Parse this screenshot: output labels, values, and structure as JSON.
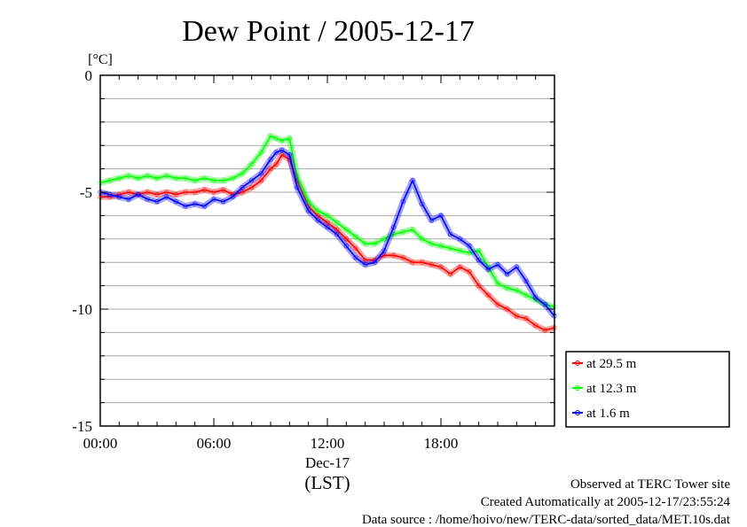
{
  "chart_data": {
    "type": "line",
    "title": "Dew Point / 2005-12-17",
    "ylabel": "[°C]",
    "xlabel": "(LST)",
    "x_date_label": "Dec-17",
    "ylim": [
      -15,
      0
    ],
    "xlim": [
      0,
      24
    ],
    "yticks": [
      {
        "value": 0,
        "label": "0"
      },
      {
        "value": -5,
        "label": "-5"
      },
      {
        "value": -10,
        "label": "-10"
      },
      {
        "value": -15,
        "label": "-15"
      }
    ],
    "xticks": [
      {
        "value": 0,
        "label": "00:00"
      },
      {
        "value": 6,
        "label": "06:00"
      },
      {
        "value": 12,
        "label": "12:00"
      },
      {
        "value": 18,
        "label": "18:00"
      }
    ],
    "grid": true,
    "legend_position": "right-bottom",
    "series": [
      {
        "name": "at 29.5 m",
        "color": "#ff0000",
        "x": [
          0,
          0.5,
          1,
          1.5,
          2,
          2.5,
          3,
          3.5,
          4,
          4.5,
          5,
          5.5,
          6,
          6.5,
          7,
          7.5,
          8,
          8.5,
          9,
          9.3,
          9.6,
          10,
          10.4,
          11,
          11.5,
          12,
          12.5,
          13,
          13.5,
          14,
          14.5,
          15,
          15.5,
          16,
          16.5,
          17,
          17.5,
          18,
          18.5,
          19,
          19.5,
          20,
          20.5,
          21,
          21.5,
          22,
          22.5,
          23,
          23.5,
          24
        ],
        "y": [
          -5.2,
          -5.2,
          -5.1,
          -5.0,
          -5.1,
          -5.0,
          -5.1,
          -5.0,
          -5.1,
          -5.0,
          -5.0,
          -4.9,
          -5.0,
          -4.9,
          -5.1,
          -5.0,
          -4.8,
          -4.5,
          -4.0,
          -3.8,
          -3.4,
          -3.6,
          -4.5,
          -5.6,
          -6.0,
          -6.3,
          -6.6,
          -7.0,
          -7.4,
          -7.9,
          -7.9,
          -7.7,
          -7.7,
          -7.8,
          -8.0,
          -8.0,
          -8.1,
          -8.2,
          -8.5,
          -8.2,
          -8.4,
          -9.0,
          -9.4,
          -9.8,
          -10.0,
          -10.3,
          -10.4,
          -10.7,
          -10.9,
          -10.8
        ]
      },
      {
        "name": "at 12.3 m",
        "color": "#00ff00",
        "x": [
          0,
          0.5,
          1,
          1.5,
          2,
          2.5,
          3,
          3.5,
          4,
          4.5,
          5,
          5.5,
          6,
          6.5,
          7,
          7.5,
          8,
          8.5,
          9,
          9.3,
          9.6,
          10,
          10.4,
          11,
          11.5,
          12,
          12.5,
          13,
          13.5,
          14,
          14.5,
          15,
          15.5,
          16,
          16.5,
          17,
          17.5,
          18,
          18.5,
          19,
          19.5,
          20,
          20.5,
          21,
          21.5,
          22,
          22.5,
          23,
          23.5,
          24
        ],
        "y": [
          -4.6,
          -4.5,
          -4.4,
          -4.3,
          -4.4,
          -4.3,
          -4.4,
          -4.3,
          -4.4,
          -4.4,
          -4.5,
          -4.4,
          -4.5,
          -4.5,
          -4.4,
          -4.2,
          -3.8,
          -3.3,
          -2.6,
          -2.7,
          -2.8,
          -2.7,
          -4.3,
          -5.4,
          -5.8,
          -6.0,
          -6.3,
          -6.6,
          -6.9,
          -7.2,
          -7.2,
          -7.0,
          -6.8,
          -6.7,
          -6.6,
          -7.0,
          -7.2,
          -7.3,
          -7.4,
          -7.5,
          -7.6,
          -7.5,
          -8.2,
          -8.9,
          -9.1,
          -9.2,
          -9.4,
          -9.6,
          -9.8,
          -9.9
        ]
      },
      {
        "name": "at 1.6 m",
        "color": "#0000ff",
        "x": [
          0,
          0.5,
          1,
          1.5,
          2,
          2.5,
          3,
          3.5,
          4,
          4.5,
          5,
          5.5,
          6,
          6.5,
          7,
          7.5,
          8,
          8.5,
          9,
          9.3,
          9.6,
          10,
          10.4,
          11,
          11.5,
          12,
          12.5,
          13,
          13.5,
          14,
          14.5,
          15,
          15.5,
          16,
          16.5,
          17,
          17.5,
          18,
          18.5,
          19,
          19.5,
          20,
          20.5,
          21,
          21.5,
          22,
          22.5,
          23,
          23.5,
          24
        ],
        "y": [
          -5.0,
          -5.1,
          -5.2,
          -5.3,
          -5.1,
          -5.3,
          -5.4,
          -5.2,
          -5.4,
          -5.6,
          -5.5,
          -5.6,
          -5.3,
          -5.4,
          -5.2,
          -4.8,
          -4.5,
          -4.2,
          -3.6,
          -3.3,
          -3.2,
          -3.4,
          -4.8,
          -5.8,
          -6.2,
          -6.5,
          -6.8,
          -7.3,
          -7.8,
          -8.1,
          -8.0,
          -7.5,
          -6.5,
          -5.4,
          -4.5,
          -5.5,
          -6.2,
          -6.0,
          -6.8,
          -7.0,
          -7.3,
          -7.9,
          -8.3,
          -8.1,
          -8.5,
          -8.2,
          -8.8,
          -9.5,
          -9.8,
          -10.3
        ]
      }
    ],
    "footer": {
      "line1": "Observed at TERC Tower site",
      "line2": "Created Automatically at 2005-12-17/23:55:24",
      "line3": "Data source : /home/hoivo/new/TERC-data/sorted_data/MET.10s.dat"
    }
  }
}
